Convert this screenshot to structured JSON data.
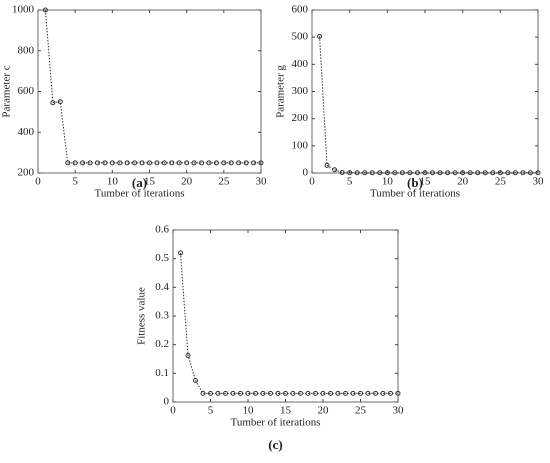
{
  "chart_data": [
    {
      "type": "line",
      "caption": "(a)",
      "xlabel": "Tumber of iterations",
      "ylabel": "Parameter c",
      "color": "#333333",
      "x": [
        1,
        2,
        3,
        4,
        5,
        6,
        7,
        8,
        9,
        10,
        11,
        12,
        13,
        14,
        15,
        16,
        17,
        18,
        19,
        20,
        21,
        22,
        23,
        24,
        25,
        26,
        27,
        28,
        29,
        30
      ],
      "values": [
        1000,
        545,
        550,
        250,
        250,
        250,
        250,
        250,
        250,
        250,
        250,
        250,
        250,
        250,
        250,
        250,
        250,
        250,
        250,
        250,
        250,
        250,
        250,
        250,
        250,
        250,
        250,
        250,
        250,
        250
      ],
      "xlim": [
        0,
        30
      ],
      "xticks": [
        0,
        5,
        10,
        15,
        20,
        25,
        30
      ],
      "ylim": [
        200,
        1000
      ],
      "yticks": [
        200,
        400,
        600,
        800,
        1000
      ]
    },
    {
      "type": "line",
      "caption": "(b)",
      "xlabel": "Tumber of iterations",
      "ylabel": "Parameter g",
      "color": "#333333",
      "x": [
        1,
        2,
        3,
        4,
        5,
        6,
        7,
        8,
        9,
        10,
        11,
        12,
        13,
        14,
        15,
        16,
        17,
        18,
        19,
        20,
        21,
        22,
        23,
        24,
        25,
        26,
        27,
        28,
        29,
        30
      ],
      "values": [
        503,
        28,
        12,
        2,
        1,
        1,
        1,
        1,
        1,
        1,
        1,
        1,
        1,
        1,
        1,
        1,
        1,
        1,
        1,
        1,
        1,
        1,
        1,
        1,
        1,
        1,
        1,
        1,
        1,
        1
      ],
      "xlim": [
        0,
        30
      ],
      "xticks": [
        0,
        5,
        10,
        15,
        20,
        25,
        30
      ],
      "ylim": [
        0,
        600
      ],
      "yticks": [
        0,
        100,
        200,
        300,
        400,
        500,
        600
      ]
    },
    {
      "type": "line",
      "caption": "(c)",
      "xlabel": "Tumber of iterations",
      "ylabel": "Fitness value",
      "color": "#333333",
      "x": [
        1,
        2,
        3,
        4,
        5,
        6,
        7,
        8,
        9,
        10,
        11,
        12,
        13,
        14,
        15,
        16,
        17,
        18,
        19,
        20,
        21,
        22,
        23,
        24,
        25,
        26,
        27,
        28,
        29,
        30
      ],
      "values": [
        0.52,
        0.162,
        0.075,
        0.03,
        0.03,
        0.03,
        0.03,
        0.03,
        0.03,
        0.03,
        0.03,
        0.03,
        0.03,
        0.03,
        0.03,
        0.03,
        0.03,
        0.03,
        0.03,
        0.03,
        0.03,
        0.03,
        0.03,
        0.03,
        0.03,
        0.03,
        0.03,
        0.03,
        0.03,
        0.03
      ],
      "xlim": [
        0,
        30
      ],
      "xticks": [
        0,
        5,
        10,
        15,
        20,
        25,
        30
      ],
      "ylim": [
        0,
        0.6
      ],
      "yticks": [
        0,
        0.1,
        0.2,
        0.3,
        0.4,
        0.5,
        0.6
      ]
    }
  ]
}
